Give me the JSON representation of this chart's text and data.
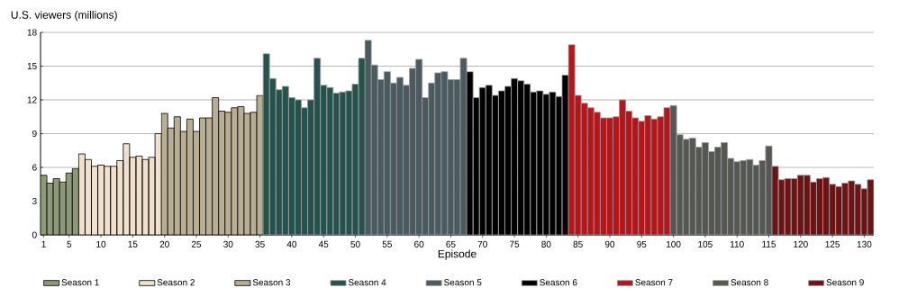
{
  "chart_data": {
    "type": "bar",
    "xlabel": "Episode",
    "ylabel": "U.S. viewers (millions)",
    "xlim": [
      0.5,
      131.5
    ],
    "xticks": [
      1,
      5,
      10,
      15,
      20,
      25,
      30,
      35,
      40,
      45,
      50,
      55,
      60,
      65,
      70,
      75,
      80,
      85,
      90,
      95,
      100,
      105,
      110,
      115,
      120,
      125,
      130
    ],
    "ylim": [
      0,
      18
    ],
    "yticks": [
      0,
      3,
      6,
      9,
      12,
      15,
      18
    ],
    "grid": "y",
    "legend": "bottom",
    "series": [
      {
        "name": "Season 1",
        "color": "#8c9a78",
        "x": [
          1,
          2,
          3,
          4,
          5,
          6
        ],
        "values": [
          5.3,
          4.6,
          5.0,
          4.7,
          5.5,
          5.9
        ]
      },
      {
        "name": "Season 2",
        "color": "#efe1cb",
        "x": [
          7,
          8,
          9,
          10,
          11,
          12,
          13,
          14,
          15,
          16,
          17,
          18,
          19
        ],
        "values": [
          7.2,
          6.7,
          6.1,
          6.2,
          6.1,
          6.1,
          6.6,
          8.1,
          6.9,
          7.0,
          6.7,
          6.9,
          9.0
        ]
      },
      {
        "name": "Season 3",
        "color": "#b8ae93",
        "x": [
          20,
          21,
          22,
          23,
          24,
          25,
          26,
          27,
          28,
          29,
          30,
          31,
          32,
          33,
          34,
          35
        ],
        "values": [
          10.8,
          9.5,
          10.5,
          9.2,
          10.3,
          9.2,
          10.4,
          10.4,
          12.2,
          11.0,
          10.9,
          11.3,
          11.4,
          10.8,
          10.9,
          12.4
        ]
      },
      {
        "name": "Season 4",
        "color": "#25524c",
        "x": [
          36,
          37,
          38,
          39,
          40,
          41,
          42,
          43,
          44,
          45,
          46,
          47,
          48,
          49,
          50,
          51
        ],
        "values": [
          16.1,
          13.9,
          12.9,
          13.2,
          12.2,
          12.0,
          11.3,
          12.0,
          15.7,
          13.3,
          13.1,
          12.6,
          12.7,
          12.8,
          13.4,
          15.7
        ]
      },
      {
        "name": "Season 5",
        "color": "#4a5a5e",
        "x": [
          52,
          53,
          54,
          55,
          56,
          57,
          58,
          59,
          60,
          61,
          62,
          63,
          64,
          65,
          66,
          67
        ],
        "values": [
          17.3,
          15.1,
          13.8,
          14.5,
          13.5,
          14.0,
          13.3,
          14.8,
          15.6,
          12.2,
          13.5,
          14.4,
          14.5,
          13.8,
          13.8,
          15.7
        ]
      },
      {
        "name": "Season 6",
        "color": "#000000",
        "x": [
          68,
          69,
          70,
          71,
          72,
          73,
          74,
          75,
          76,
          77,
          78,
          79,
          80,
          81,
          82,
          83
        ],
        "values": [
          14.5,
          12.2,
          13.1,
          13.3,
          12.4,
          12.8,
          13.2,
          13.9,
          13.7,
          13.4,
          12.7,
          12.8,
          12.5,
          12.7,
          12.3,
          14.2
        ]
      },
      {
        "name": "Season 7",
        "color": "#b5161b",
        "x": [
          84,
          85,
          86,
          87,
          88,
          89,
          90,
          91,
          92,
          93,
          94,
          95,
          96,
          97,
          98,
          99
        ],
        "values": [
          16.9,
          12.4,
          11.7,
          11.3,
          10.9,
          10.4,
          10.4,
          10.5,
          12.0,
          11.0,
          10.4,
          10.1,
          10.6,
          10.3,
          10.5,
          11.3
        ]
      },
      {
        "name": "Season 8",
        "color": "#555753",
        "x": [
          100,
          101,
          102,
          103,
          104,
          105,
          106,
          107,
          108,
          109,
          110,
          111,
          112,
          113,
          114,
          115
        ],
        "values": [
          11.5,
          8.9,
          8.5,
          8.6,
          7.8,
          8.2,
          7.4,
          7.8,
          8.2,
          6.8,
          6.5,
          6.6,
          6.7,
          6.2,
          6.6,
          7.9
        ]
      },
      {
        "name": "Season 9",
        "color": "#6e1214",
        "x": [
          116,
          117,
          118,
          119,
          120,
          121,
          122,
          123,
          124,
          125,
          126,
          127,
          128,
          129,
          130,
          131
        ],
        "values": [
          6.1,
          4.9,
          5.0,
          5.0,
          5.3,
          5.3,
          4.7,
          5.0,
          5.1,
          4.5,
          4.3,
          4.6,
          4.8,
          4.5,
          4.1,
          4.9
        ]
      }
    ]
  }
}
